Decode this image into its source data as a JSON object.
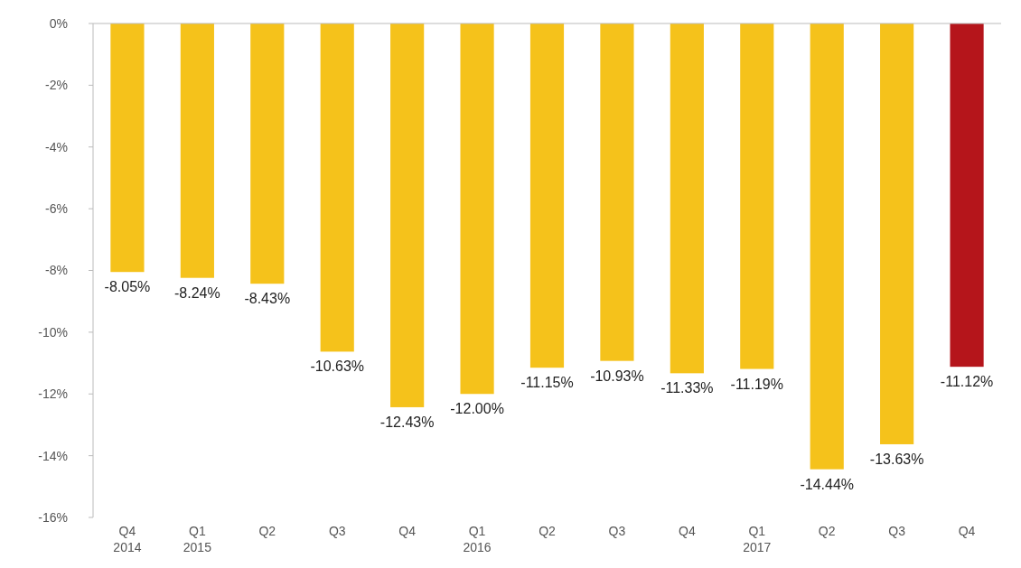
{
  "chart_data": {
    "type": "bar",
    "categories": [
      "Q4\n2014",
      "Q1\n2015",
      "Q2",
      "Q3",
      "Q4",
      "Q1\n2016",
      "Q2",
      "Q3",
      "Q4",
      "Q1\n2017",
      "Q2",
      "Q3",
      "Q4"
    ],
    "values": [
      -8.05,
      -8.24,
      -8.43,
      -10.63,
      -12.43,
      -12.0,
      -11.15,
      -10.93,
      -11.33,
      -11.19,
      -14.44,
      -13.63,
      -11.12
    ],
    "colors": [
      "#f5c21b",
      "#f5c21b",
      "#f5c21b",
      "#f5c21b",
      "#f5c21b",
      "#f5c21b",
      "#f5c21b",
      "#f5c21b",
      "#f5c21b",
      "#f5c21b",
      "#f5c21b",
      "#f5c21b",
      "#b5151b"
    ],
    "value_labels": [
      "-8.05%",
      "-8.24%",
      "-8.43%",
      "-10.63%",
      "-12.43%",
      "-12.00%",
      "-11.15%",
      "-10.93%",
      "-11.33%",
      "-11.19%",
      "-14.44%",
      "-13.63%",
      "-11.12%"
    ],
    "ylim": [
      -16,
      0
    ],
    "yticks": [
      {
        "value": 0,
        "label": "0%"
      },
      {
        "value": -2,
        "label": "-2%"
      },
      {
        "value": -4,
        "label": "-4%"
      },
      {
        "value": -6,
        "label": "-6%"
      },
      {
        "value": -8,
        "label": "-8%"
      },
      {
        "value": -10,
        "label": "-10%"
      },
      {
        "value": -12,
        "label": "-12%"
      },
      {
        "value": -14,
        "label": "-14%"
      },
      {
        "value": -16,
        "label": "-16%"
      }
    ],
    "grid": false
  }
}
